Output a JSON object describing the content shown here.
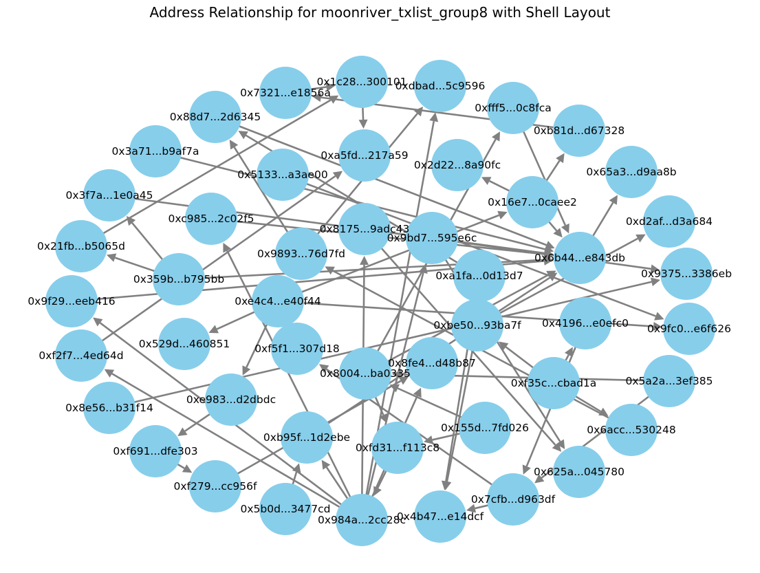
{
  "title": "Address Relationship for moonriver_txlist_group8 with Shell Layout",
  "colors": {
    "node": "#87CEEB",
    "edge": "#808080",
    "label": "#000000"
  },
  "nodes": [
    {
      "id": "0x1c28...300101"
    },
    {
      "id": "0xdbad...5c9596"
    },
    {
      "id": "0xfff5...0c8fca"
    },
    {
      "id": "0xb81d...d67328"
    },
    {
      "id": "0x65a3...d9aa8b"
    },
    {
      "id": "0xd2af...d3a684"
    },
    {
      "id": "0x9375...3386eb"
    },
    {
      "id": "0x9fc0...e6f626"
    },
    {
      "id": "0x5a2a...3ef385"
    },
    {
      "id": "0x6acc...530248"
    },
    {
      "id": "0x625a...045780"
    },
    {
      "id": "0x7cfb...d963df"
    },
    {
      "id": "0x4b47...e14dcf"
    },
    {
      "id": "0x984a...2cc28c"
    },
    {
      "id": "0x5b0d...3477cd"
    },
    {
      "id": "0xf279...cc956f"
    },
    {
      "id": "0xf691...dfe303"
    },
    {
      "id": "0x8e56...b31f14"
    },
    {
      "id": "0xf2f7...4ed64d"
    },
    {
      "id": "0x9f29...eeb416"
    },
    {
      "id": "0x21fb...b5065d"
    },
    {
      "id": "0x3f7a...1e0a45"
    },
    {
      "id": "0x3a71...b9af7a"
    },
    {
      "id": "0x88d7...2d6345"
    },
    {
      "id": "0x7321...e1856a"
    },
    {
      "id": "0xa5fd...217a59"
    },
    {
      "id": "0x2d22...8a90fc"
    },
    {
      "id": "0x16e7...0caee2"
    },
    {
      "id": "0x6b44...e843db"
    },
    {
      "id": "0x4196...e0efc0"
    },
    {
      "id": "0xf35c...cbad1a"
    },
    {
      "id": "0x155d...7fd026"
    },
    {
      "id": "0xfd31...f113c8"
    },
    {
      "id": "0xb95f...1d2ebe"
    },
    {
      "id": "0xe983...d2dbdc"
    },
    {
      "id": "0x529d...460851"
    },
    {
      "id": "0x359b...b795bb"
    },
    {
      "id": "0xc985...2c02f5"
    },
    {
      "id": "0x5133...a3ae00"
    },
    {
      "id": "0x8175...9adc43"
    },
    {
      "id": "0x9bd7...595e6c"
    },
    {
      "id": "0xa1fa...0d13d7"
    },
    {
      "id": "0xbe50...93ba7f"
    },
    {
      "id": "0x8fe4...d48b87"
    },
    {
      "id": "0x8004...ba0335"
    },
    {
      "id": "0xf5f1...307d18"
    },
    {
      "id": "0xe4c4...e40f44"
    },
    {
      "id": "0x9893...76d7fd"
    }
  ],
  "edges": [
    [
      "0xb81d...d67328",
      "0x7321...e1856a"
    ],
    [
      "0x7321...e1856a",
      "0x1c28...300101"
    ],
    [
      "0x3a71...b9af7a",
      "0x6b44...e843db"
    ],
    [
      "0x88d7...2d6345",
      "0x6b44...e843db"
    ],
    [
      "0xa1fa...0d13d7",
      "0x88d7...2d6345"
    ],
    [
      "0x5133...a3ae00",
      "0x9fc0...e6f626"
    ],
    [
      "0x3f7a...1e0a45",
      "0x6b44...e843db"
    ],
    [
      "0xc985...2c02f5",
      "0x6b44...e843db"
    ],
    [
      "0x21fb...b5065d",
      "0x1c28...300101"
    ],
    [
      "0x359b...b795bb",
      "0x21fb...b5065d"
    ],
    [
      "0x359b...b795bb",
      "0x3f7a...1e0a45"
    ],
    [
      "0x359b...b795bb",
      "0x6b44...e843db"
    ],
    [
      "0x9f29...eeb416",
      "0x6b44...e843db"
    ],
    [
      "0xf2f7...4ed64d",
      "0xa5fd...217a59"
    ],
    [
      "0xe4c4...e40f44",
      "0x529d...460851"
    ],
    [
      "0xe4c4...e40f44",
      "0xe983...d2dbdc"
    ],
    [
      "0xe4c4...e40f44",
      "0x16e7...0caee2"
    ],
    [
      "0xe4c4...e40f44",
      "0x9fc0...e6f626"
    ],
    [
      "0x9893...76d7fd",
      "0xdbad...5c9596"
    ],
    [
      "0x9893...76d7fd",
      "0x88d7...2d6345"
    ],
    [
      "0x1c28...300101",
      "0xa5fd...217a59"
    ],
    [
      "0x16e7...0caee2",
      "0x2d22...8a90fc"
    ],
    [
      "0x16e7...0caee2",
      "0xb81d...d67328"
    ],
    [
      "0x16e7...0caee2",
      "0x6b44...e843db"
    ],
    [
      "0xfff5...0c8fca",
      "0x6b44...e843db"
    ],
    [
      "0x6b44...e843db",
      "0x65a3...d9aa8b"
    ],
    [
      "0x8175...9adc43",
      "0x9375...3386eb"
    ],
    [
      "0x8175...9adc43",
      "0x625a...045780"
    ],
    [
      "0x9bd7...595e6c",
      "0x625a...045780"
    ],
    [
      "0x9bd7...595e6c",
      "0x6b44...e843db"
    ],
    [
      "0xbe50...93ba7f",
      "0xd2af...d3a684"
    ],
    [
      "0xbe50...93ba7f",
      "0x4b47...e14dcf"
    ],
    [
      "0xa1fa...0d13d7",
      "0x4b47...e14dcf"
    ],
    [
      "0x4196...e0efc0",
      "0x7cfb...d963df"
    ],
    [
      "0x6acc...530248",
      "0x9893...76d7fd"
    ],
    [
      "0x5a2a...3ef385",
      "0x8004...ba0335"
    ],
    [
      "0x5a2a...3ef385",
      "0x7cfb...d963df"
    ],
    [
      "0x8004...ba0335",
      "0x6b44...e843db"
    ],
    [
      "0x8004...ba0335",
      "0xfd31...f113c8"
    ],
    [
      "0x8004...ba0335",
      "0xfff5...0c8fca"
    ],
    [
      "0xf35c...cbad1a",
      "0x4196...e0efc0"
    ],
    [
      "0xf35c...cbad1a",
      "0xbe50...93ba7f"
    ],
    [
      "0xf35c...cbad1a",
      "0x6acc...530248"
    ],
    [
      "0x984a...2cc28c",
      "0xf2f7...4ed64d"
    ],
    [
      "0x984a...2cc28c",
      "0x9f29...eeb416"
    ],
    [
      "0x984a...2cc28c",
      "0xb95f...1d2ebe"
    ],
    [
      "0x984a...2cc28c",
      "0x8fe4...d48b87"
    ],
    [
      "0x984a...2cc28c",
      "0xdbad...5c9596"
    ],
    [
      "0x984a...2cc28c",
      "0x9bd7...595e6c"
    ],
    [
      "0x984a...2cc28c",
      "0xc985...2c02f5"
    ],
    [
      "0x984a...2cc28c",
      "0x8175...9adc43"
    ],
    [
      "0x5b0d...3477cd",
      "0xb95f...1d2ebe"
    ],
    [
      "0xf279...cc956f",
      "0x8fe4...d48b87"
    ],
    [
      "0xf691...dfe303",
      "0xf279...cc956f"
    ],
    [
      "0xe983...d2dbdc",
      "0xf691...dfe303"
    ],
    [
      "0x8e56...b31f14",
      "0x9375...3386eb"
    ],
    [
      "0xb95f...1d2ebe",
      "0x6b44...e843db"
    ],
    [
      "0x7cfb...d963df",
      "0xf5f1...307d18"
    ],
    [
      "0x7cfb...d963df",
      "0x4b47...e14dcf"
    ],
    [
      "0xfd31...f113c8",
      "0x984a...2cc28c"
    ],
    [
      "0x155d...7fd026",
      "0xfd31...f113c8"
    ],
    [
      "0x155d...7fd026",
      "0x8004...ba0335"
    ]
  ]
}
